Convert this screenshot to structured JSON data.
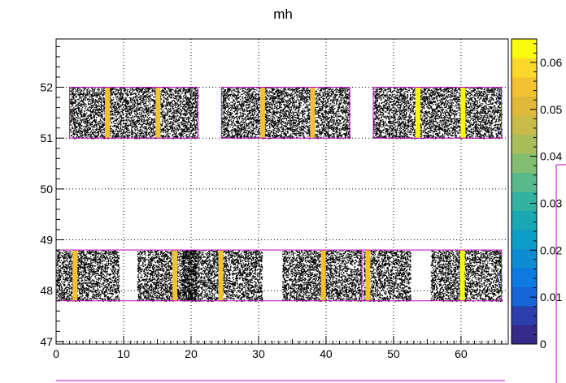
{
  "chart_data": {
    "type": "heatmap",
    "title": "mh",
    "xlabel": "",
    "ylabel": "",
    "xlim": [
      0,
      67
    ],
    "ylim": [
      46.95,
      52.95
    ],
    "grid": true,
    "x_ticks": [
      {
        "value": 0,
        "label": "0"
      },
      {
        "value": 10,
        "label": "10"
      },
      {
        "value": 20,
        "label": "20"
      },
      {
        "value": 30,
        "label": "30"
      },
      {
        "value": 40,
        "label": "40"
      },
      {
        "value": 50,
        "label": "50"
      },
      {
        "value": 60,
        "label": "60"
      }
    ],
    "y_ticks": [
      {
        "value": 47,
        "label": "47"
      },
      {
        "value": 48,
        "label": "48"
      },
      {
        "value": 49,
        "label": "49"
      },
      {
        "value": 50,
        "label": "50"
      },
      {
        "value": 51,
        "label": "51"
      },
      {
        "value": 52,
        "label": "52"
      }
    ],
    "colorbar": {
      "range": [
        0,
        0.065
      ],
      "ticks": [
        {
          "value": 0,
          "label": "0"
        },
        {
          "value": 0.01,
          "label": "0.01"
        },
        {
          "value": 0.02,
          "label": "0.02"
        },
        {
          "value": 0.03,
          "label": "0.03"
        },
        {
          "value": 0.04,
          "label": "0.04"
        },
        {
          "value": 0.05,
          "label": "0.05"
        },
        {
          "value": 0.06,
          "label": "0.06"
        }
      ],
      "colors": [
        "#352a87",
        "#2b3ea9",
        "#1565d7",
        "#0e7ae0",
        "#0d8cd1",
        "#0d9cc6",
        "#1aa8b3",
        "#33b2a0",
        "#59b98a",
        "#82bd72",
        "#a9bd5b",
        "#c8bb47",
        "#e0b83a",
        "#f2c232",
        "#f9d829",
        "#f9fb0e"
      ]
    },
    "regions": [
      {
        "x": [
          2,
          21
        ],
        "y": [
          51,
          52
        ],
        "hot": [
          {
            "x": 7.6,
            "level": 0.055
          },
          {
            "x": 15.1,
            "level": 0.055
          }
        ]
      },
      {
        "x": [
          24.5,
          43.5
        ],
        "y": [
          51,
          52
        ],
        "hot": [
          {
            "x": 30.6,
            "level": 0.055
          },
          {
            "x": 38,
            "level": 0.055
          }
        ]
      },
      {
        "x": [
          47,
          66
        ],
        "y": [
          51,
          52
        ],
        "hot": [
          {
            "x": 53.6,
            "level": 0.065
          },
          {
            "x": 60.3,
            "level": 0.065
          }
        ]
      },
      {
        "x": [
          0,
          9.3
        ],
        "y": [
          47.8,
          48.8
        ],
        "hot": [
          {
            "x": 2.8,
            "level": 0.055
          }
        ]
      },
      {
        "x": [
          12,
          20.8
        ],
        "y": [
          47.8,
          48.8
        ],
        "hot": [
          {
            "x": 17.6,
            "level": 0.055
          }
        ]
      },
      {
        "x": [
          18.6,
          30.5
        ],
        "y": [
          47.8,
          48.8
        ],
        "hot": [
          {
            "x": 24.4,
            "level": 0.055
          }
        ]
      },
      {
        "x": [
          33.5,
          45.3
        ],
        "y": [
          47.8,
          48.8
        ],
        "hot": [
          {
            "x": 39.6,
            "level": 0.055
          }
        ]
      },
      {
        "x": [
          45.5,
          52.5
        ],
        "y": [
          47.8,
          48.8
        ],
        "hot": [
          {
            "x": 46.2,
            "level": 0.055
          }
        ]
      },
      {
        "x": [
          55.5,
          66
        ],
        "y": [
          47.8,
          48.8
        ],
        "hot": [
          {
            "x": 60.2,
            "level": 0.065
          }
        ]
      }
    ],
    "outlines": [
      {
        "x": [
          2,
          21
        ],
        "y": [
          51,
          52
        ]
      },
      {
        "x": [
          24.5,
          43.5
        ],
        "y": [
          51,
          52
        ]
      },
      {
        "x": [
          47,
          66
        ],
        "y": [
          51,
          52
        ]
      },
      {
        "x": [
          0,
          45.3
        ],
        "y": [
          47.8,
          48.8
        ]
      },
      {
        "x": [
          45.3,
          66
        ],
        "y": [
          47.8,
          48.8
        ]
      }
    ]
  }
}
